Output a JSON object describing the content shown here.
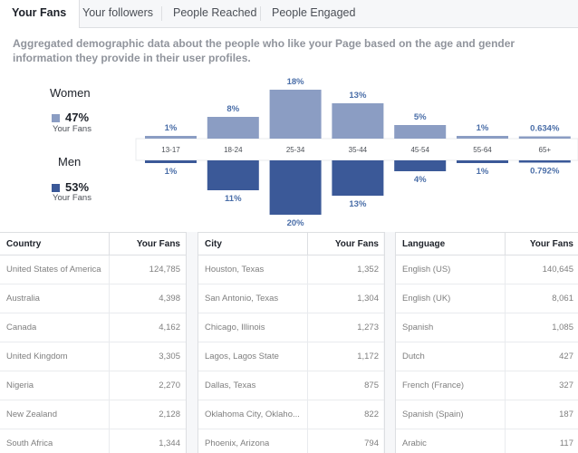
{
  "tabs": [
    "Your Fans",
    "Your followers",
    "People Reached",
    "People Engaged"
  ],
  "description": "Aggregated demographic data about the people who like your Page based on the age and gender information they provide in their user profiles.",
  "gender": {
    "women": {
      "label": "Women",
      "pct": "47%",
      "sub": "Your Fans",
      "color": "#8b9dc3"
    },
    "men": {
      "label": "Men",
      "pct": "53%",
      "sub": "Your Fans",
      "color": "#3b5998"
    }
  },
  "chart_data": {
    "type": "bar",
    "categories": [
      "13-17",
      "18-24",
      "25-34",
      "35-44",
      "45-54",
      "55-64",
      "65+"
    ],
    "series": [
      {
        "name": "Women",
        "values": [
          1,
          8,
          18,
          13,
          5,
          1,
          0.634
        ],
        "labels": [
          "1%",
          "8%",
          "18%",
          "13%",
          "5%",
          "1%",
          "0.634%"
        ]
      },
      {
        "name": "Men",
        "values": [
          1,
          11,
          20,
          13,
          4,
          1,
          0.792
        ],
        "labels": [
          "1%",
          "11%",
          "20%",
          "13%",
          "4%",
          "1%",
          "0.792%"
        ]
      }
    ]
  },
  "tables": [
    {
      "col1": "Country",
      "col2": "Your Fans",
      "rows": [
        [
          "United States of America",
          "124,785"
        ],
        [
          "Australia",
          "4,398"
        ],
        [
          "Canada",
          "4,162"
        ],
        [
          "United Kingdom",
          "3,305"
        ],
        [
          "Nigeria",
          "2,270"
        ],
        [
          "New Zealand",
          "2,128"
        ],
        [
          "South Africa",
          "1,344"
        ]
      ]
    },
    {
      "col1": "City",
      "col2": "Your Fans",
      "rows": [
        [
          "Houston, Texas",
          "1,352"
        ],
        [
          "San Antonio, Texas",
          "1,304"
        ],
        [
          "Chicago, Illinois",
          "1,273"
        ],
        [
          "Lagos, Lagos State",
          "1,172"
        ],
        [
          "Dallas, Texas",
          "875"
        ],
        [
          "Oklahoma City, Oklaho...",
          "822"
        ],
        [
          "Phoenix, Arizona",
          "794"
        ]
      ]
    },
    {
      "col1": "Language",
      "col2": "Your Fans",
      "rows": [
        [
          "English (US)",
          "140,645"
        ],
        [
          "English (UK)",
          "8,061"
        ],
        [
          "Spanish",
          "1,085"
        ],
        [
          "Dutch",
          "427"
        ],
        [
          "French (France)",
          "327"
        ],
        [
          "Spanish (Spain)",
          "187"
        ],
        [
          "Arabic",
          "117"
        ]
      ]
    }
  ]
}
